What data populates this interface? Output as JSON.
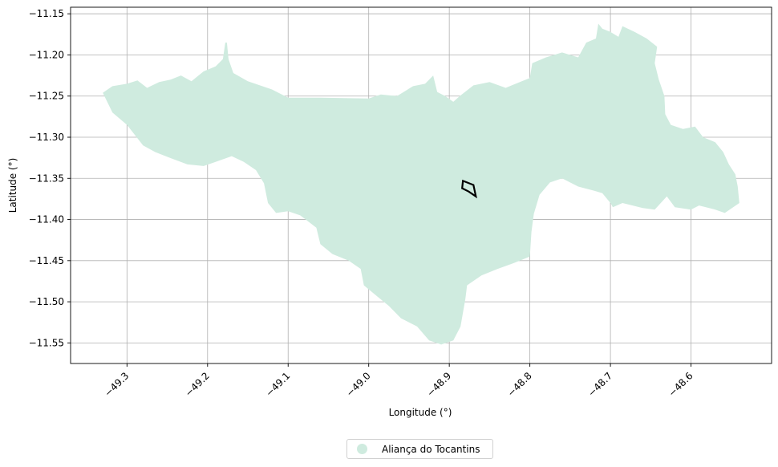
{
  "chart_data": {
    "type": "map",
    "xlabel": "Longitude (°)",
    "ylabel": "Latitude (°)",
    "xlim": [
      -49.37,
      -48.5
    ],
    "ylim": [
      -11.575,
      -11.142
    ],
    "xticks": [
      -49.3,
      -49.2,
      -49.1,
      -49.0,
      -48.9,
      -48.8,
      -48.7,
      -48.6
    ],
    "xtick_labels": [
      "−49.3",
      "−49.2",
      "−49.1",
      "−49.0",
      "−48.9",
      "−48.8",
      "−48.7",
      "−48.6"
    ],
    "yticks": [
      -11.15,
      -11.2,
      -11.25,
      -11.3,
      -11.35,
      -11.4,
      -11.45,
      -11.5,
      -11.55
    ],
    "ytick_labels": [
      "−11.15",
      "−11.20",
      "−11.25",
      "−11.30",
      "−11.35",
      "−11.40",
      "−11.45",
      "−11.50",
      "−11.55"
    ],
    "grid": true,
    "legend_position": "bottom-center",
    "region": {
      "name": "Aliança do Tocantins",
      "color": "#cfebdf",
      "outline": [
        [
          -49.33,
          -11.246
        ],
        [
          -49.318,
          -11.238
        ],
        [
          -49.3,
          -11.235
        ],
        [
          -49.287,
          -11.231
        ],
        [
          -49.275,
          -11.24
        ],
        [
          -49.26,
          -11.233
        ],
        [
          -49.246,
          -11.23
        ],
        [
          -49.233,
          -11.225
        ],
        [
          -49.22,
          -11.232
        ],
        [
          -49.205,
          -11.22
        ],
        [
          -49.19,
          -11.214
        ],
        [
          -49.181,
          -11.205
        ],
        [
          -49.178,
          -11.185
        ],
        [
          -49.176,
          -11.185
        ],
        [
          -49.174,
          -11.205
        ],
        [
          -49.168,
          -11.222
        ],
        [
          -49.15,
          -11.232
        ],
        [
          -49.12,
          -11.242
        ],
        [
          -49.1,
          -11.252
        ],
        [
          -49.06,
          -11.252
        ],
        [
          -49.0,
          -11.253
        ],
        [
          -48.985,
          -11.248
        ],
        [
          -48.965,
          -11.25
        ],
        [
          -48.945,
          -11.238
        ],
        [
          -48.93,
          -11.235
        ],
        [
          -48.92,
          -11.225
        ],
        [
          -48.915,
          -11.245
        ],
        [
          -48.905,
          -11.25
        ],
        [
          -48.895,
          -11.257
        ],
        [
          -48.887,
          -11.25
        ],
        [
          -48.87,
          -11.237
        ],
        [
          -48.85,
          -11.233
        ],
        [
          -48.83,
          -11.24
        ],
        [
          -48.81,
          -11.232
        ],
        [
          -48.8,
          -11.228
        ],
        [
          -48.797,
          -11.21
        ],
        [
          -48.78,
          -11.203
        ],
        [
          -48.76,
          -11.197
        ],
        [
          -48.74,
          -11.203
        ],
        [
          -48.73,
          -11.185
        ],
        [
          -48.718,
          -11.18
        ],
        [
          -48.715,
          -11.162
        ],
        [
          -48.71,
          -11.168
        ],
        [
          -48.7,
          -11.172
        ],
        [
          -48.69,
          -11.178
        ],
        [
          -48.685,
          -11.165
        ],
        [
          -48.67,
          -11.172
        ],
        [
          -48.655,
          -11.18
        ],
        [
          -48.642,
          -11.19
        ],
        [
          -48.645,
          -11.21
        ],
        [
          -48.64,
          -11.23
        ],
        [
          -48.633,
          -11.25
        ],
        [
          -48.632,
          -11.272
        ],
        [
          -48.625,
          -11.285
        ],
        [
          -48.61,
          -11.29
        ],
        [
          -48.595,
          -11.287
        ],
        [
          -48.585,
          -11.3
        ],
        [
          -48.57,
          -11.306
        ],
        [
          -48.56,
          -11.318
        ],
        [
          -48.553,
          -11.333
        ],
        [
          -48.545,
          -11.345
        ],
        [
          -48.542,
          -11.36
        ],
        [
          -48.54,
          -11.38
        ],
        [
          -48.558,
          -11.392
        ],
        [
          -48.57,
          -11.388
        ],
        [
          -48.59,
          -11.383
        ],
        [
          -48.6,
          -11.388
        ],
        [
          -48.62,
          -11.385
        ],
        [
          -48.63,
          -11.372
        ],
        [
          -48.645,
          -11.388
        ],
        [
          -48.66,
          -11.386
        ],
        [
          -48.685,
          -11.38
        ],
        [
          -48.697,
          -11.385
        ],
        [
          -48.7,
          -11.38
        ],
        [
          -48.71,
          -11.368
        ],
        [
          -48.72,
          -11.365
        ],
        [
          -48.74,
          -11.36
        ],
        [
          -48.76,
          -11.35
        ],
        [
          -48.775,
          -11.355
        ],
        [
          -48.788,
          -11.37
        ],
        [
          -48.795,
          -11.393
        ],
        [
          -48.798,
          -11.415
        ],
        [
          -48.8,
          -11.445
        ],
        [
          -48.82,
          -11.453
        ],
        [
          -48.84,
          -11.46
        ],
        [
          -48.86,
          -11.468
        ],
        [
          -48.878,
          -11.48
        ],
        [
          -48.88,
          -11.496
        ],
        [
          -48.886,
          -11.53
        ],
        [
          -48.895,
          -11.547
        ],
        [
          -48.91,
          -11.552
        ],
        [
          -48.925,
          -11.547
        ],
        [
          -48.94,
          -11.53
        ],
        [
          -48.96,
          -11.52
        ],
        [
          -48.975,
          -11.505
        ],
        [
          -48.99,
          -11.493
        ],
        [
          -49.006,
          -11.48
        ],
        [
          -49.01,
          -11.46
        ],
        [
          -49.025,
          -11.45
        ],
        [
          -49.045,
          -11.442
        ],
        [
          -49.06,
          -11.43
        ],
        [
          -49.065,
          -11.41
        ],
        [
          -49.085,
          -11.395
        ],
        [
          -49.1,
          -11.39
        ],
        [
          -49.115,
          -11.392
        ],
        [
          -49.125,
          -11.38
        ],
        [
          -49.13,
          -11.356
        ],
        [
          -49.14,
          -11.34
        ],
        [
          -49.155,
          -11.33
        ],
        [
          -49.17,
          -11.323
        ],
        [
          -49.19,
          -11.33
        ],
        [
          -49.205,
          -11.335
        ],
        [
          -49.225,
          -11.333
        ],
        [
          -49.247,
          -11.325
        ],
        [
          -49.265,
          -11.318
        ],
        [
          -49.28,
          -11.31
        ],
        [
          -49.3,
          -11.285
        ],
        [
          -49.318,
          -11.27
        ],
        [
          -49.33,
          -11.246
        ]
      ]
    },
    "marker": {
      "color": "#000000",
      "outline": [
        [
          -48.883,
          -11.353
        ],
        [
          -48.87,
          -11.358
        ],
        [
          -48.867,
          -11.372
        ],
        [
          -48.876,
          -11.366
        ],
        [
          -48.884,
          -11.362
        ],
        [
          -48.883,
          -11.353
        ]
      ]
    }
  },
  "legend": {
    "label": "Aliança do Tocantins"
  }
}
